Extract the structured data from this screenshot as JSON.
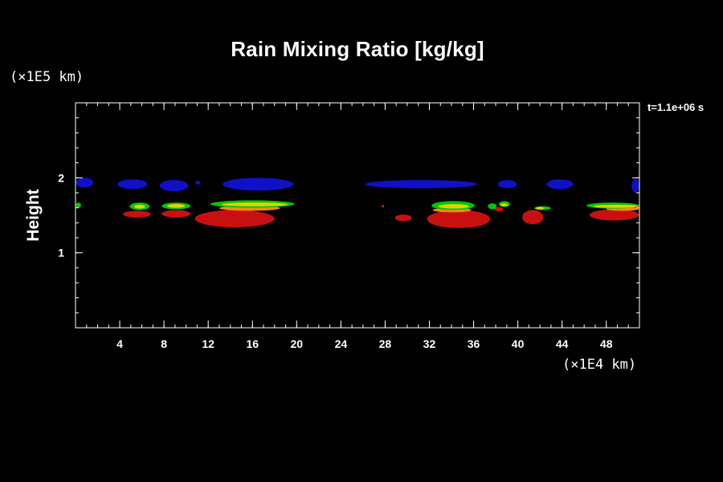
{
  "chart_data": {
    "type": "heatmap",
    "title": "Rain Mixing Ratio [kg/kg]",
    "ylabel": "Height",
    "x_unit_label": "(×1E4 km)",
    "y_unit_label": "(×1E5 km)",
    "time_label": "t=1.1e+06 s",
    "xlim": [
      0,
      51
    ],
    "ylim": [
      0,
      3
    ],
    "x_ticks": [
      4,
      8,
      12,
      16,
      20,
      24,
      28,
      32,
      36,
      40,
      44,
      48
    ],
    "y_ticks": [
      1,
      2
    ],
    "x_minor_step": 1,
    "y_minor_step": 0.2,
    "colors": {
      "level1": "#1010c8",
      "level2": "#00c800",
      "level3": "#e6d200",
      "level4": "#ff8c00",
      "level5": "#c81010"
    },
    "regions": [
      {
        "level": "level1",
        "x": [
          0,
          1.6
        ],
        "y": [
          1.87,
          2.0
        ]
      },
      {
        "level": "level1",
        "x": [
          3.8,
          6.5
        ],
        "y": [
          1.85,
          1.98
        ]
      },
      {
        "level": "level1",
        "x": [
          7.6,
          10.2
        ],
        "y": [
          1.82,
          1.97
        ]
      },
      {
        "level": "level1",
        "x": [
          10.8,
          11.3
        ],
        "y": [
          1.91,
          1.96
        ]
      },
      {
        "level": "level1",
        "x": [
          13.3,
          19.7
        ],
        "y": [
          1.83,
          2.0
        ]
      },
      {
        "level": "level1",
        "x": [
          26.2,
          36.3
        ],
        "y": [
          1.86,
          1.97
        ]
      },
      {
        "level": "level1",
        "x": [
          38.2,
          39.9
        ],
        "y": [
          1.86,
          1.97
        ]
      },
      {
        "level": "level1",
        "x": [
          42.6,
          45.0
        ],
        "y": [
          1.85,
          1.98
        ]
      },
      {
        "level": "level1",
        "x": [
          50.3,
          51.0
        ],
        "y": [
          1.8,
          1.99
        ]
      },
      {
        "level": "level5",
        "x": [
          4.3,
          6.8
        ],
        "y": [
          1.47,
          1.56
        ]
      },
      {
        "level": "level2",
        "x": [
          4.9,
          6.7
        ],
        "y": [
          1.57,
          1.67
        ]
      },
      {
        "level": "level3",
        "x": [
          5.3,
          6.3
        ],
        "y": [
          1.59,
          1.64
        ]
      },
      {
        "level": "level5",
        "x": [
          7.8,
          10.4
        ],
        "y": [
          1.47,
          1.57
        ]
      },
      {
        "level": "level2",
        "x": [
          7.8,
          10.4
        ],
        "y": [
          1.58,
          1.67
        ]
      },
      {
        "level": "level3",
        "x": [
          8.3,
          9.9
        ],
        "y": [
          1.6,
          1.65
        ]
      },
      {
        "level": "level5",
        "x": [
          10.8,
          18.0
        ],
        "y": [
          1.34,
          1.57
        ]
      },
      {
        "level": "level4",
        "x": [
          13.0,
          18.5
        ],
        "y": [
          1.56,
          1.63
        ]
      },
      {
        "level": "level2",
        "x": [
          12.2,
          19.8
        ],
        "y": [
          1.6,
          1.7
        ]
      },
      {
        "level": "level3",
        "x": [
          13.2,
          19.2
        ],
        "y": [
          1.62,
          1.67
        ]
      },
      {
        "level": "level5",
        "x": [
          28.9,
          30.4
        ],
        "y": [
          1.42,
          1.51
        ]
      },
      {
        "level": "level5",
        "x": [
          31.8,
          37.5
        ],
        "y": [
          1.33,
          1.57
        ]
      },
      {
        "level": "level4",
        "x": [
          32.3,
          35.8
        ],
        "y": [
          1.54,
          1.6
        ]
      },
      {
        "level": "level2",
        "x": [
          32.2,
          36.1
        ],
        "y": [
          1.57,
          1.69
        ]
      },
      {
        "level": "level3",
        "x": [
          32.8,
          35.6
        ],
        "y": [
          1.59,
          1.65
        ]
      },
      {
        "level": "level2",
        "x": [
          37.3,
          38.1
        ],
        "y": [
          1.58,
          1.66
        ]
      },
      {
        "level": "level5",
        "x": [
          37.9,
          38.7
        ],
        "y": [
          1.55,
          1.61
        ]
      },
      {
        "level": "level2",
        "x": [
          38.3,
          39.3
        ],
        "y": [
          1.61,
          1.69
        ]
      },
      {
        "level": "level3",
        "x": [
          38.4,
          39.1
        ],
        "y": [
          1.62,
          1.66
        ]
      },
      {
        "level": "level5",
        "x": [
          40.4,
          42.3
        ],
        "y": [
          1.38,
          1.57
        ]
      },
      {
        "level": "level2",
        "x": [
          41.5,
          43.0
        ],
        "y": [
          1.57,
          1.62
        ]
      },
      {
        "level": "level3",
        "x": [
          41.6,
          42.4
        ],
        "y": [
          1.58,
          1.61
        ]
      },
      {
        "level": "level5",
        "x": [
          46.5,
          51.0
        ],
        "y": [
          1.43,
          1.58
        ]
      },
      {
        "level": "level4",
        "x": [
          48.0,
          51.0
        ],
        "y": [
          1.56,
          1.61
        ]
      },
      {
        "level": "level2",
        "x": [
          46.2,
          51.0
        ],
        "y": [
          1.59,
          1.67
        ]
      },
      {
        "level": "level3",
        "x": [
          46.8,
          51.0
        ],
        "y": [
          1.6,
          1.64
        ]
      },
      {
        "level": "level2",
        "x": [
          0,
          0.5
        ],
        "y": [
          1.6,
          1.67
        ]
      },
      {
        "level": "level5",
        "x": [
          27.7,
          27.9
        ],
        "y": [
          1.6,
          1.64
        ]
      }
    ]
  }
}
